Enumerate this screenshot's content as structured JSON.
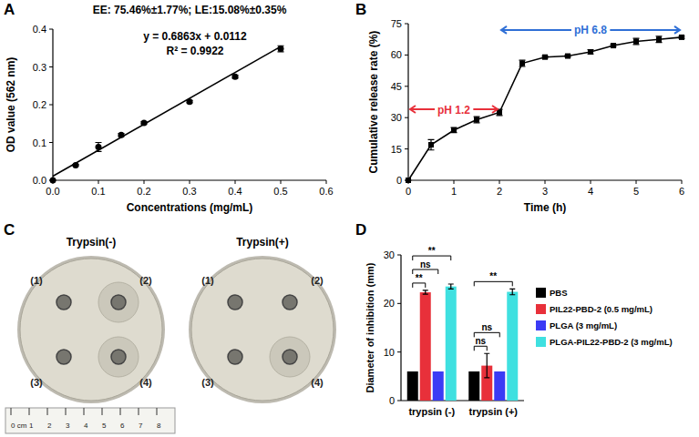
{
  "chart_data": [
    {
      "label": "A",
      "type": "scatter",
      "title": "EE: 75.46%±1.77%; LE:15.08%±0.35%",
      "x_label": "Concentrations (mg/mL)",
      "y_label": "OD value (562 nm)",
      "annotations": [
        "y = 0.6863x + 0.0112",
        "R² = 0.9922"
      ],
      "xlim": [
        0,
        0.6
      ],
      "xticks": [
        {
          "value": 0,
          "label": "0.0"
        },
        {
          "value": 0.1,
          "label": "0.1"
        },
        {
          "value": 0.2,
          "label": "0.2"
        },
        {
          "value": 0.3,
          "label": "0.3"
        },
        {
          "value": 0.4,
          "label": "0.4"
        },
        {
          "value": 0.5,
          "label": "0.5"
        },
        {
          "value": 0.6,
          "label": "0.6"
        }
      ],
      "ylim": [
        0,
        0.4
      ],
      "yticks": [
        {
          "value": 0,
          "label": "0.0"
        },
        {
          "value": 0.1,
          "label": "0.1"
        },
        {
          "value": 0.2,
          "label": "0.2"
        },
        {
          "value": 0.3,
          "label": "0.3"
        },
        {
          "value": 0.4,
          "label": "0.4"
        }
      ],
      "grid": false,
      "series": [
        {
          "type": "scatter",
          "marker": "circle",
          "color": "#000000",
          "x": [
            0,
            0.05,
            0.1,
            0.15,
            0.2,
            0.3,
            0.4,
            0.5
          ],
          "values": [
            0,
            0.04,
            0.088,
            0.12,
            0.152,
            0.208,
            0.274,
            0.348
          ],
          "errors": [
            0,
            0.002,
            0.012,
            0.004,
            0.003,
            0.003,
            0.004,
            0.008
          ]
        },
        {
          "type": "line",
          "line_style": "solid",
          "color": "#000000",
          "x": [
            0,
            0.5
          ],
          "values": [
            0.011,
            0.354
          ]
        }
      ]
    },
    {
      "label": "B",
      "type": "line",
      "x_label": "Time (h)",
      "y_label": "Cumulative release rate (%)",
      "xlim": [
        0,
        6
      ],
      "xticks": [
        0,
        1,
        2,
        3,
        4,
        5,
        6
      ],
      "ylim": [
        0,
        75
      ],
      "yticks": [
        0,
        15,
        30,
        45,
        60,
        75
      ],
      "grid": false,
      "annotations": [
        {
          "text": "pH 1.2",
          "x": [
            0,
            2
          ],
          "y": 34,
          "color": "#e8303a"
        },
        {
          "text": "pH 6.8",
          "x": [
            2,
            6
          ],
          "y": 72,
          "color": "#2f6fd6"
        }
      ],
      "series": [
        {
          "type": "line",
          "marker": "square",
          "color": "#000000",
          "x": [
            0,
            0.5,
            1,
            1.5,
            2,
            2.5,
            3,
            3.5,
            4,
            4.5,
            5,
            5.5,
            6
          ],
          "values": [
            0,
            17,
            24,
            29,
            32.5,
            56,
            59,
            59.5,
            61.5,
            64.5,
            66.5,
            67.5,
            68.5
          ],
          "errors": [
            0,
            2.5,
            1.2,
            1.5,
            1.5,
            1.5,
            0.5,
            0.5,
            1,
            0.5,
            1.5,
            1.5,
            0.5
          ]
        }
      ]
    },
    {
      "label": "D",
      "type": "bar",
      "y_label": "Diameter of inhibition (mm)",
      "categories": [
        "trypsin (-)",
        "trypsin (+)"
      ],
      "ylim": [
        0,
        30
      ],
      "yticks": [
        0,
        10,
        20,
        30
      ],
      "grid": false,
      "legend": "right",
      "series": [
        {
          "name": "PBS",
          "color": "#000000",
          "values": [
            6,
            6
          ],
          "errors": [
            0,
            0
          ]
        },
        {
          "name": "PIL22-PBD-2 (0.5 mg/mL)",
          "color": "#e8303a",
          "values": [
            22.3,
            7.2
          ],
          "errors": [
            0.4,
            2.5
          ]
        },
        {
          "name": "PLGA (3 mg/mL)",
          "color": "#3b3bf5",
          "values": [
            6,
            6
          ],
          "errors": [
            0,
            0
          ]
        },
        {
          "name": "PLGA-PIL22-PBD-2 (3 mg/mL)",
          "color": "#3fe0e0",
          "values": [
            23.5,
            22.4
          ],
          "errors": [
            0.5,
            0.6
          ]
        }
      ],
      "significance": [
        {
          "category": 0,
          "from": 0,
          "to": 1,
          "label": "**"
        },
        {
          "category": 0,
          "from": 0,
          "to": 2,
          "label": "ns"
        },
        {
          "category": 0,
          "from": 0,
          "to": 3,
          "label": "**"
        },
        {
          "category": 1,
          "from": 0,
          "to": 1,
          "label": "ns"
        },
        {
          "category": 1,
          "from": 0,
          "to": 2,
          "label": "ns"
        },
        {
          "category": 1,
          "from": 0,
          "to": 3,
          "label": "**"
        }
      ]
    }
  ],
  "photo": {
    "label": "C",
    "panels": [
      {
        "title": "Trypsin(-)",
        "zones": [
          false,
          true,
          false,
          true
        ]
      },
      {
        "title": "Trypsin(+)",
        "zones": [
          false,
          false,
          false,
          true
        ]
      }
    ],
    "well_labels": [
      "(1)",
      "(2)",
      "(3)",
      "(4)"
    ],
    "ruler_labels": [
      "0 cm",
      "1",
      "2",
      "3",
      "4",
      "5",
      "6",
      "7",
      "8"
    ]
  }
}
